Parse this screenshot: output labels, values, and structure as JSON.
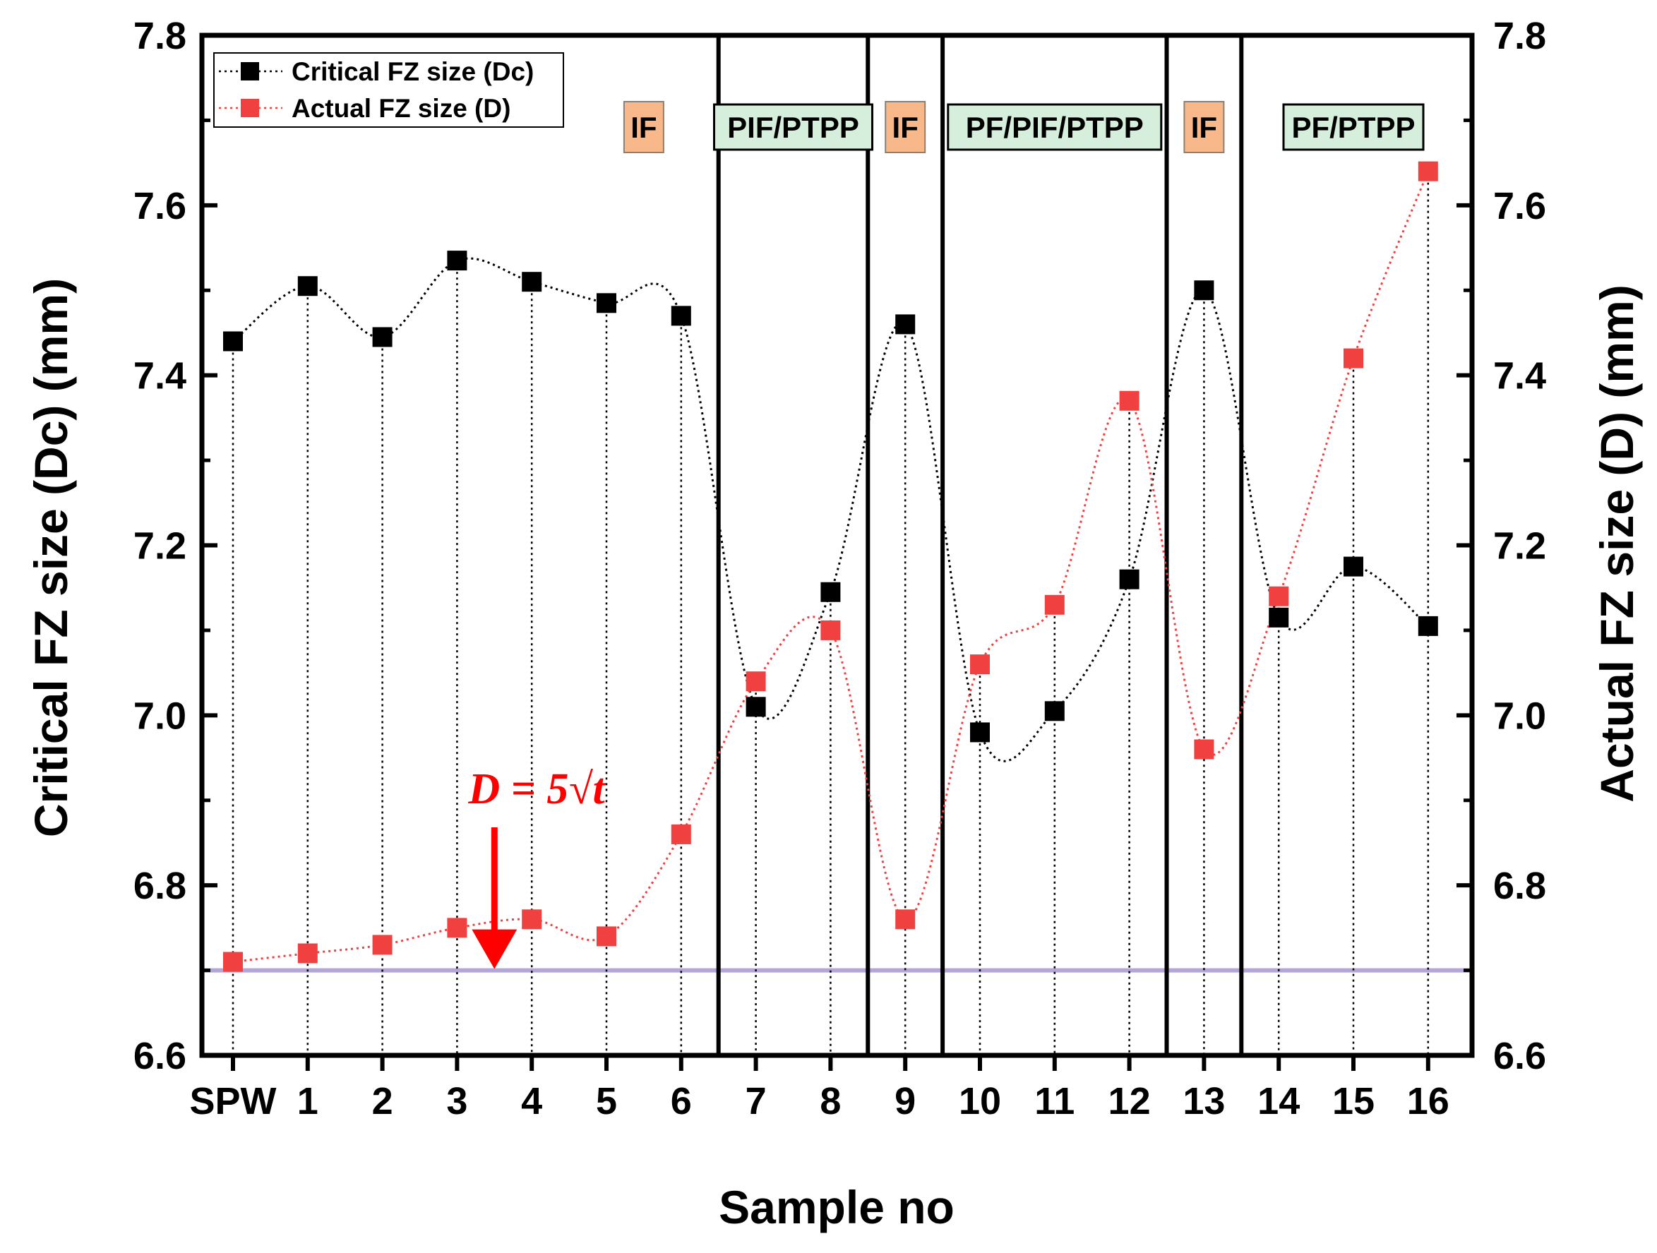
{
  "chart_data": {
    "type": "line",
    "categories": [
      "SPW",
      "1",
      "2",
      "3",
      "4",
      "5",
      "6",
      "7",
      "8",
      "9",
      "10",
      "11",
      "12",
      "13",
      "14",
      "15",
      "16"
    ],
    "series": [
      {
        "name": "Critical FZ size (Dc)",
        "color": "#000000",
        "axis": "left",
        "values": [
          7.44,
          7.505,
          7.445,
          7.535,
          7.51,
          7.485,
          7.47,
          7.01,
          7.145,
          7.46,
          6.98,
          7.005,
          7.16,
          7.5,
          7.115,
          7.175,
          7.105
        ]
      },
      {
        "name": "Actual FZ size (D)",
        "color": "#f04040",
        "axis": "right",
        "values": [
          6.71,
          6.72,
          6.73,
          6.75,
          6.76,
          6.74,
          6.86,
          7.04,
          7.1,
          6.76,
          7.06,
          7.13,
          7.37,
          6.96,
          7.14,
          7.42,
          7.64
        ]
      }
    ],
    "reference_line": {
      "value": 6.7,
      "color": "#b3a6d6"
    },
    "ylim": [
      6.6,
      7.8
    ],
    "yticks": [
      "6.6",
      "6.8",
      "7.0",
      "7.2",
      "7.4",
      "7.6",
      "7.8"
    ],
    "xlabel": "Sample no",
    "ylabel_left": "Critical FZ size (Dc) (mm)",
    "ylabel_right": "Actual FZ size (D) (mm)",
    "legend": {
      "placement": "top-left",
      "entries": [
        "Critical FZ size (Dc)",
        "Actual FZ size (D)"
      ]
    },
    "region_dividers_after_index": [
      6.5,
      8.5,
      9.5,
      12.5,
      13.5
    ],
    "regions": [
      {
        "label": "IF",
        "center_index": 5.5,
        "style": "orange"
      },
      {
        "label": "PIF/PTPP",
        "center_index": 7.5,
        "style": "green"
      },
      {
        "label": "IF",
        "center_index": 9,
        "style": "orange"
      },
      {
        "label": "PF/PIF/PTPP",
        "center_index": 11,
        "style": "green"
      },
      {
        "label": "IF",
        "center_index": 13,
        "style": "orange"
      },
      {
        "label": "PF/PTPP",
        "center_index": 15,
        "style": "green"
      }
    ],
    "annotation": {
      "text": "D = 5√t",
      "target_index": 3.5,
      "target_value": 6.7,
      "color": "#ff0000"
    },
    "colors": {
      "orange_fill": "#f9b88a",
      "green_fill": "#d6efdc"
    }
  }
}
